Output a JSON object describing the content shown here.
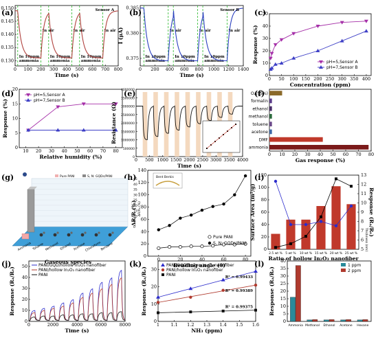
{
  "labels": [
    "(a)",
    "(b)",
    "(c)",
    "(d)",
    "(e)",
    "(f)",
    "(g)",
    "(h)",
    "(i)",
    "(j)",
    "(k)",
    "(l)"
  ],
  "chart_data": [
    {
      "id": "a",
      "type": "line",
      "title": "Sensor A",
      "xlabel": "Time (s)",
      "ylabel": "I (μA)",
      "xlim": [
        0,
        800
      ],
      "ylim": [
        0.128,
        0.151
      ],
      "xticks": [
        0,
        100,
        200,
        300,
        400,
        500,
        600,
        700,
        800
      ],
      "yticks": [
        0.13,
        0.135,
        0.14,
        0.145,
        0.15
      ],
      "color": "#b0413e",
      "annotations": [
        {
          "text": "In air"
        },
        {
          "text": "In 10ppm"
        },
        {
          "text": "ammonia"
        }
      ],
      "pulses": [
        [
          20,
          200
        ],
        [
          260,
          440
        ],
        [
          500,
          680
        ]
      ]
    },
    {
      "id": "b",
      "type": "line",
      "title": "Sensor B",
      "xlabel": "Time (s)",
      "ylabel": "I (μA)",
      "xlim": [
        0,
        1400
      ],
      "ylim": [
        0.3735,
        0.3855
      ],
      "xticks": [
        0,
        200,
        400,
        600,
        800,
        1000,
        1200,
        1400
      ],
      "yticks": [
        0.375,
        0.38,
        0.385
      ],
      "color": "#2a3fbf",
      "annotations": [
        {
          "text": "In air"
        },
        {
          "text": "In 10ppm"
        },
        {
          "text": "ammonia"
        }
      ],
      "pulses": [
        [
          50,
          380
        ],
        [
          450,
          780
        ],
        [
          850,
          1180
        ]
      ]
    },
    {
      "id": "c",
      "type": "line",
      "xlabel": "Concentration (ppm)",
      "ylabel": "Response (%)",
      "xlim": [
        0,
        420
      ],
      "ylim": [
        0,
        50
      ],
      "xticks": [
        0,
        50,
        100,
        150,
        200,
        250,
        300,
        350,
        400
      ],
      "yticks": [
        0,
        10,
        20,
        30,
        40,
        50
      ],
      "series": [
        {
          "name": "pH=5,Sensor A",
          "color": "#a52fa8",
          "marker": "tri-down",
          "x": [
            5,
            10,
            25,
            50,
            100,
            200,
            300,
            400
          ],
          "y": [
            14,
            18,
            25,
            29,
            34,
            40,
            43,
            44
          ]
        },
        {
          "name": "pH=7,Sensor B",
          "color": "#3d3fc6",
          "marker": "tri-up",
          "x": [
            5,
            10,
            25,
            50,
            100,
            200,
            300,
            400
          ],
          "y": [
            5,
            6,
            9,
            10,
            14,
            20,
            28,
            36
          ]
        }
      ]
    },
    {
      "id": "d",
      "type": "line",
      "xlabel": "Relative humidity (%)",
      "ylabel": "Response (%)",
      "xlim": [
        5,
        85
      ],
      "ylim": [
        0,
        20
      ],
      "xticks": [
        10,
        20,
        30,
        40,
        50,
        60,
        70,
        80
      ],
      "yticks": [
        0,
        5,
        10,
        15,
        20
      ],
      "series": [
        {
          "name": "pH=5,Sensor A",
          "color": "#a52fa8",
          "marker": "tri-down",
          "x": [
            12,
            35,
            55,
            80
          ],
          "y": [
            6,
            14,
            15,
            15
          ]
        },
        {
          "name": "pH=7,Sensor B",
          "color": "#3d3fc6",
          "marker": "tri-up",
          "x": [
            12,
            35,
            55,
            80
          ],
          "y": [
            6,
            6,
            6,
            6
          ]
        }
      ]
    },
    {
      "id": "e",
      "type": "line",
      "xlabel": "Time (s)",
      "ylabel": "Resistance (Ω)",
      "xlim": [
        0,
        4000
      ],
      "ylim": [
        0,
        4000000
      ],
      "xticks": [
        0,
        500,
        1000,
        1500,
        2000,
        2500,
        3000,
        3500,
        4000
      ],
      "yticks": [
        0,
        500000,
        1000000,
        1500000,
        2000000,
        2500000,
        3000000,
        3500000,
        4000000
      ],
      "color": "#111111"
    },
    {
      "id": "f",
      "type": "bar",
      "orientation": "horizontal",
      "xlabel": "Gas response (%)",
      "categories": [
        "O₂(95%)",
        "formalin",
        "ethanol",
        "methanol",
        "toluene",
        "acetone",
        "DMF",
        "ammonia"
      ],
      "values": [
        10,
        2,
        2,
        2,
        2,
        2,
        42,
        78
      ],
      "colors": [
        "#8b6a2a",
        "#5b3d8a",
        "#4a2f6a",
        "#2c6b3d",
        "#6b4a8a",
        "#3f6aa8",
        "#c0392b",
        "#7b1a1a"
      ],
      "xlim": [
        0,
        80
      ],
      "xticks": [
        0,
        10,
        20,
        30,
        40,
        50,
        60,
        70,
        80
      ]
    },
    {
      "id": "g",
      "type": "bar3d",
      "xlabel": "Gaseous species",
      "ylabel": "ΔR/R₀ (%)",
      "legend": [
        "Pure PANI",
        "S, N: GQDs/PANI"
      ],
      "categories": [
        "Ammonia",
        "Toluene",
        "Methanol",
        "Ethanol",
        "Acetone",
        "Chloroform",
        "Benzene"
      ],
      "values_a": [
        5,
        0.5,
        0.5,
        0.5,
        0.5,
        0.5,
        0.5
      ],
      "values_b": [
        40,
        0.5,
        0.5,
        0.5,
        0.5,
        0.5,
        0.5
      ],
      "yticks": [
        0,
        5,
        10,
        15,
        20,
        25,
        30,
        35,
        40,
        45
      ]
    },
    {
      "id": "h",
      "type": "line",
      "xlabel": "Bending angle (θ)",
      "ylabel": "ΔR/R (%)",
      "xlim": [
        -10,
        85
      ],
      "ylim": [
        0,
        140
      ],
      "xticks": [
        0,
        20,
        40,
        60,
        80
      ],
      "yticks": [
        0,
        20,
        40,
        60,
        80,
        100,
        120,
        140
      ],
      "inset_label": "Bent Berkis",
      "series": [
        {
          "name": "Pure PANI",
          "marker": "open-circle",
          "x": [
            0,
            10,
            20,
            30,
            40,
            50,
            60,
            70,
            80
          ],
          "y": [
            13,
            15,
            15,
            16,
            16,
            17,
            19,
            19,
            20
          ]
        },
        {
          "name": "S, N: GQDs/PANI",
          "marker": "filled-circle",
          "x": [
            0,
            10,
            20,
            30,
            40,
            50,
            60,
            70,
            80
          ],
          "y": [
            43,
            50,
            62,
            67,
            75,
            81,
            85,
            100,
            131
          ]
        }
      ]
    },
    {
      "id": "i",
      "type": "bar+line",
      "xlabel": "Ratio of hollow In₂O₃ nanofiber",
      "ylabel": "Surface Area (m²/g)",
      "ylabel2": "Response (Rₐ/Rₑ)",
      "categories": [
        "2.5 wt %",
        "5 wt %",
        "10 wt %",
        "15 wt %",
        "20 wt %",
        "25 wt %"
      ],
      "values": [
        25,
        48,
        48,
        70,
        102,
        73
      ],
      "bar_color": "#c0392b",
      "ylim": [
        0,
        120
      ],
      "yticks": [
        0,
        20,
        40,
        60,
        80,
        100,
        120
      ],
      "y2lim": [
        5,
        13
      ],
      "y2ticks": [
        5,
        6,
        7,
        8,
        9,
        10,
        11,
        12,
        13
      ],
      "thickness_label": "Thickness (nm)",
      "line_response": [
        5.2,
        5.6,
        6.4,
        8.5,
        12.6,
        11.8
      ],
      "line_thickness": [
        110,
        40,
        40,
        45,
        38,
        70
      ]
    },
    {
      "id": "j",
      "type": "line",
      "xlabel": "Time (s)",
      "ylabel": "Response (Rₐ/Rₑ)",
      "xlim": [
        0,
        8000
      ],
      "ylim": [
        0,
        55
      ],
      "xticks": [
        0,
        2000,
        4000,
        6000,
        8000
      ],
      "yticks": [
        0,
        10,
        20,
        30,
        40,
        50
      ],
      "series": [
        {
          "name": "PANI/GQD/hollow In₂O₃ nanofiber",
          "color": "#2c2ccc",
          "peaks": [
            10,
            12,
            14,
            17,
            20,
            26,
            30,
            36,
            40,
            47
          ]
        },
        {
          "name": "PANI/hollow In₂O₃ nanofiber",
          "color": "#b03a2e",
          "peaks": [
            8,
            10,
            12,
            14,
            17,
            22,
            26,
            30,
            34,
            40
          ]
        },
        {
          "name": "PANI",
          "color": "#111111",
          "peaks": [
            4,
            5,
            5,
            6,
            6,
            7,
            7,
            8,
            8,
            9
          ]
        }
      ]
    },
    {
      "id": "k",
      "type": "scatter",
      "xlabel": "NH₃ (ppm)",
      "ylabel": "Response (Rₐ/Rₑ)",
      "xlim": [
        1.0,
        1.6
      ],
      "ylim": [
        0,
        35
      ],
      "xticks": [
        1.0,
        1.1,
        1.2,
        1.3,
        1.4,
        1.5,
        1.6
      ],
      "yticks": [
        0,
        10,
        20,
        30
      ],
      "series": [
        {
          "name": "PANI/GQD/hollow In₂O₃ nanofiber",
          "color": "#2c2ccc",
          "marker": "tri-up",
          "x": [
            1.0,
            1.2,
            1.4,
            1.6
          ],
          "y": [
            14,
            19,
            24,
            29
          ],
          "r2": "R² = 0.99433"
        },
        {
          "name": "PANI/hollow In₂O₃ nanofiber",
          "color": "#b03a2e",
          "marker": "circle",
          "x": [
            1.0,
            1.2,
            1.4,
            1.6
          ],
          "y": [
            11,
            14,
            18,
            21
          ],
          "r2": "R² = 0.99389"
        },
        {
          "name": "PANI",
          "color": "#111111",
          "marker": "square",
          "x": [
            1.0,
            1.2,
            1.4,
            1.6
          ],
          "y": [
            5,
            5.5,
            6,
            6.5
          ],
          "r2": "R² = 0.99375"
        }
      ]
    },
    {
      "id": "l",
      "type": "bar",
      "ylabel": "Response (Rₐ/Rₑ)",
      "categories": [
        "Ammonia",
        "Methanol",
        "Ethanol",
        "Acetone",
        "Hexane"
      ],
      "series": [
        {
          "name": "1 ppm",
          "color": "#2a8a9a",
          "values": [
            16,
            1,
            1,
            1,
            1
          ]
        },
        {
          "name": "2 ppm",
          "color": "#b03a2e",
          "values": [
            37,
            1.2,
            1.2,
            1.2,
            1.2
          ]
        }
      ],
      "ylim": [
        0,
        40
      ],
      "yticks": [
        0,
        5,
        10,
        15,
        20,
        25,
        30,
        35,
        40
      ]
    }
  ]
}
